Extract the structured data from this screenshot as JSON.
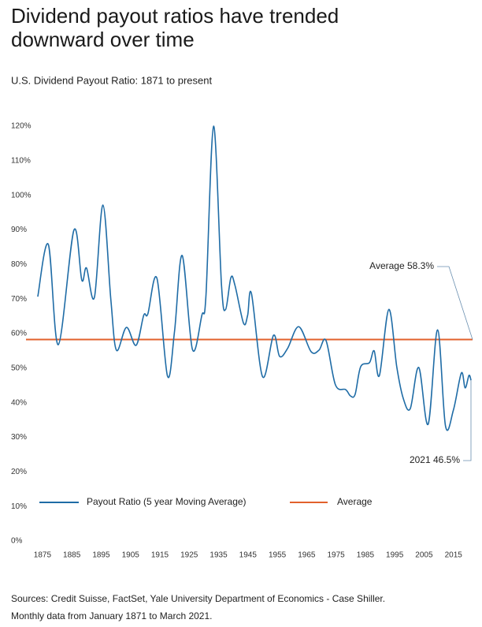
{
  "chart_data": {
    "type": "line",
    "title": [
      "Dividend payout ratios have trended",
      "downward over time"
    ],
    "subtitle": "U.S. Dividend Payout Ratio: 1871 to present",
    "x": [
      1873.4,
      1877,
      1880.4,
      1885.7,
      1888.4,
      1890,
      1892.7,
      1895.6,
      1898.3,
      1900.2,
      1903.6,
      1906.9,
      1909.5,
      1910.9,
      1914,
      1917.6,
      1920,
      1922.6,
      1926.1,
      1929.3,
      1930.7,
      1933.3,
      1936,
      1937.4,
      1939.2,
      1940.6,
      1943.5,
      1944.9,
      1946.2,
      1950,
      1953.7,
      1955.8,
      1958.5,
      1962.3,
      1966.5,
      1969.2,
      1971.6,
      1974.8,
      1978.3,
      1979.9,
      1981.5,
      1983.4,
      1986.4,
      1988,
      1989.8,
      1993,
      1995.7,
      1997.9,
      2000.3,
      2003.2,
      2006.4,
      2009.6,
      2012.3,
      2015,
      2017.7,
      2019,
      2020.3,
      2021
    ],
    "series": [
      {
        "name": "Payout Ratio (5 year Moving Average)",
        "color": "#1f6ca6",
        "values": [
          70.7,
          85.8,
          56.8,
          89.9,
          75.5,
          79,
          70.5,
          97.2,
          69.8,
          55.2,
          61.8,
          56.6,
          65.3,
          65.7,
          76,
          47.7,
          60.7,
          82.6,
          55.4,
          65.3,
          71,
          120,
          73.9,
          67,
          76.2,
          73.9,
          63,
          65.3,
          71.6,
          47.5,
          59.5,
          53.4,
          55.7,
          62,
          54.8,
          55.2,
          58,
          45.2,
          43.8,
          42,
          42.4,
          50.4,
          51.6,
          55,
          47.9,
          67,
          50.4,
          41.3,
          38.3,
          50.2,
          33.8,
          61.1,
          33.3,
          37.9,
          48.6,
          44.3,
          47.9,
          46.5
        ]
      }
    ],
    "reference_line": {
      "name": "Average",
      "value": 58.3,
      "color": "#e2612c"
    },
    "annotations": [
      "Average 58.3%",
      "2021 46.5%"
    ],
    "xlim": [
      1871,
      2021.25
    ],
    "xticks": [
      1875,
      1885,
      1895,
      1905,
      1915,
      1925,
      1935,
      1945,
      1955,
      1965,
      1975,
      1985,
      1995,
      2005,
      2015
    ],
    "ylim": [
      0,
      120
    ],
    "yticks": [
      {
        "value": 0,
        "label": "0%"
      },
      {
        "value": 10,
        "label": "10%"
      },
      {
        "value": 20,
        "label": "20%"
      },
      {
        "value": 30,
        "label": "30%"
      },
      {
        "value": 40,
        "label": "40%"
      },
      {
        "value": 50,
        "label": "50%"
      },
      {
        "value": 60,
        "label": "60%"
      },
      {
        "value": 70,
        "label": "70%"
      },
      {
        "value": 80,
        "label": "80%"
      },
      {
        "value": 90,
        "label": "90%"
      },
      {
        "value": 100,
        "label": "100%"
      },
      {
        "value": 110,
        "label": "110%"
      },
      {
        "value": 120,
        "label": "120%"
      }
    ],
    "grid": false
  },
  "notes": [
    "Sources: Credit Suisse, FactSet, Yale University Department of Economics - Case Shiller.",
    "Monthly data from January 1871 to March 2021."
  ]
}
